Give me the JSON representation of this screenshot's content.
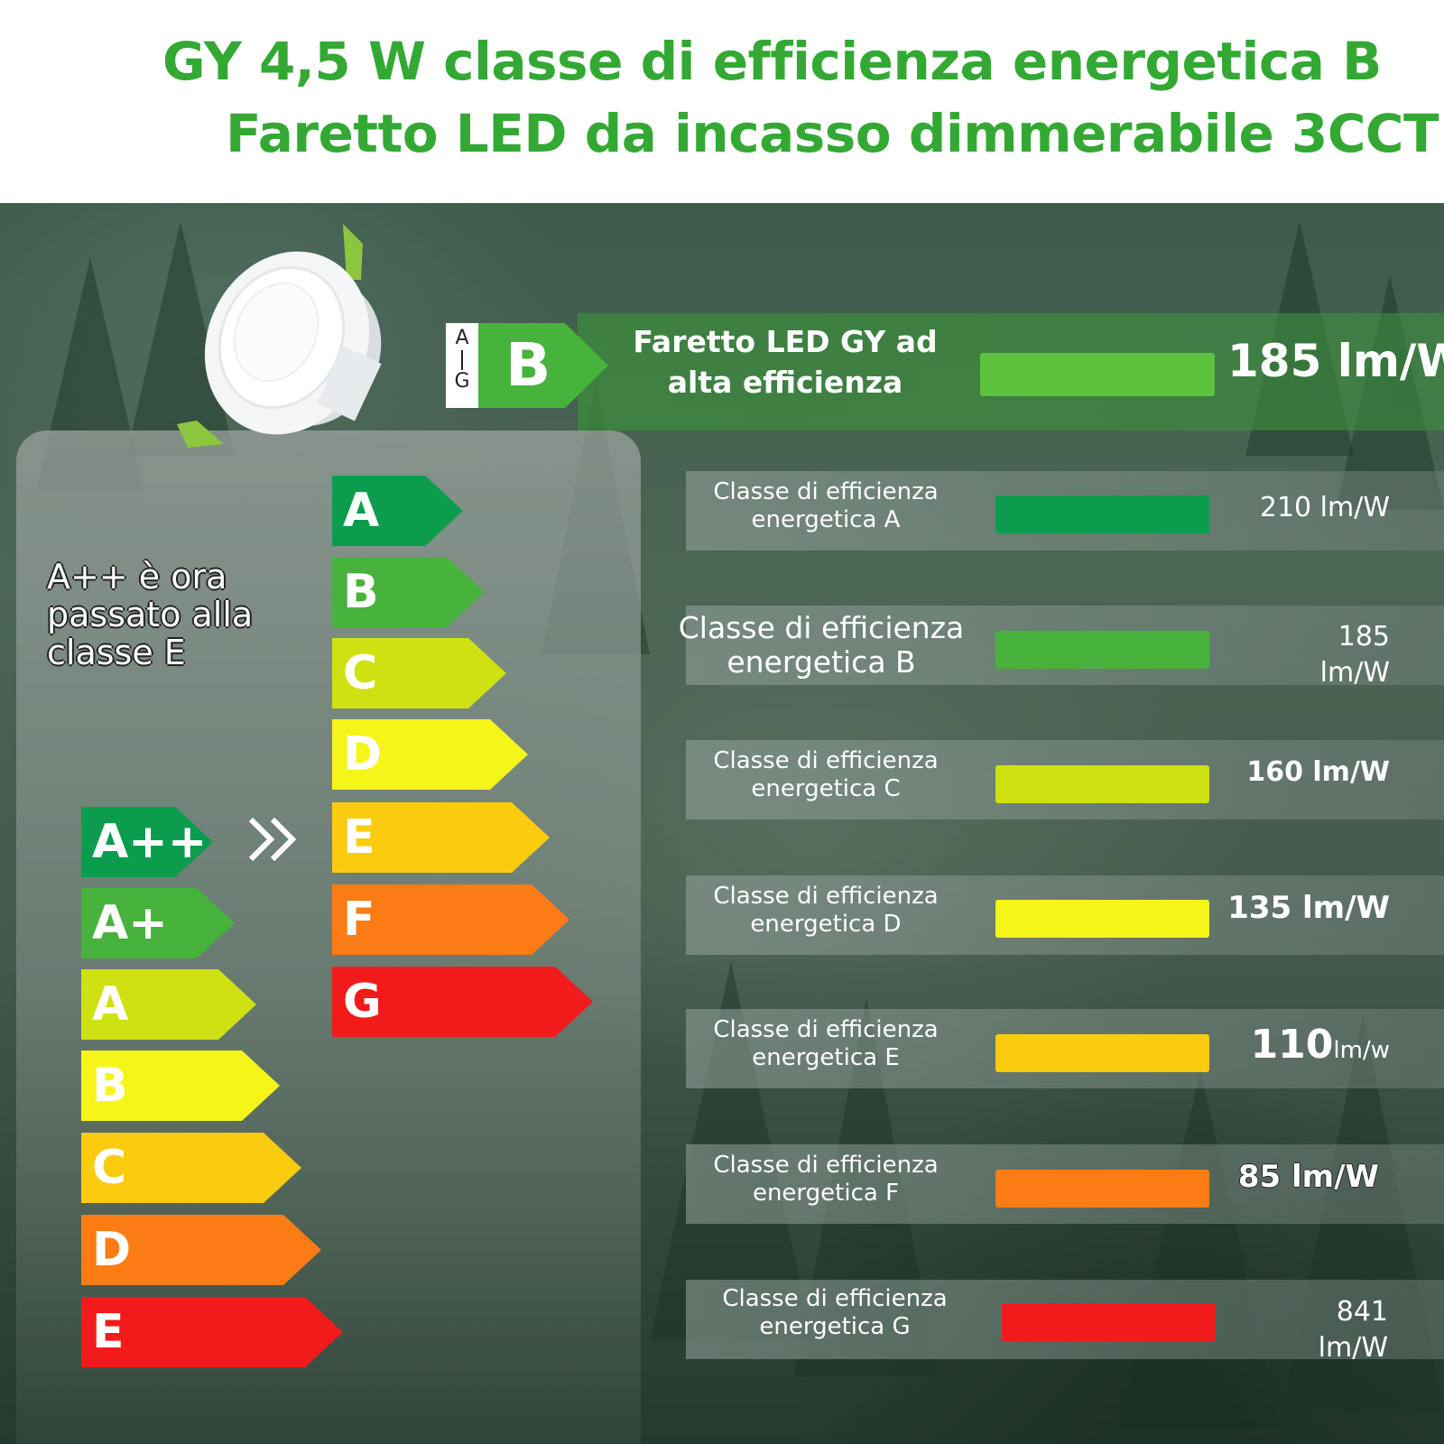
{
  "header": {
    "title_line1": "GY 4,5 W classe di efficienza energetica B",
    "title_line2": "Faretto LED da incasso dimmerabile 3CCT"
  },
  "colors": {
    "title_green": "#33a934",
    "class_A": "#0b9d4d",
    "class_B": "#47b33c",
    "class_C": "#cfe113",
    "class_D": "#f6f51a",
    "class_E": "#fbcb0f",
    "class_F": "#fb7c14",
    "class_G": "#f21b1b"
  },
  "note": "A++ è ora passato alla classe E",
  "old_scale": [
    "A++",
    "A+",
    "A",
    "B",
    "C",
    "D",
    "E"
  ],
  "new_scale": [
    "A",
    "B",
    "C",
    "D",
    "E",
    "F",
    "G"
  ],
  "chevron_icon": "double-chevron-right-icon",
  "product": {
    "scale_top": "A",
    "scale_bottom": "G",
    "class": "B",
    "name": "Faretto LED GY ad alta efficienza",
    "value": "185 lm/W",
    "efficacy_lm_per_w": 185
  },
  "rows": [
    {
      "label": "Classe di efficienza energetica A",
      "value": "210 lm/W",
      "efficacy_lm_per_w": 210
    },
    {
      "label": "Classe di efficienza energetica B",
      "value": "185 lm/W",
      "efficacy_lm_per_w": 185
    },
    {
      "label": "Classe di efficienza energetica C",
      "value": "160 lm/W",
      "efficacy_lm_per_w": 160
    },
    {
      "label": "Classe di efficienza energetica D",
      "value": "135 lm/W",
      "efficacy_lm_per_w": 135
    },
    {
      "label": "Classe di efficienza energetica E",
      "value_num": "110",
      "value_unit": "lm/w",
      "efficacy_lm_per_w": 110
    },
    {
      "label": "Classe di efficienza energetica F",
      "value": "85 lm/W",
      "efficacy_lm_per_w": 85
    },
    {
      "label": "Classe di efficienza energetica G",
      "value": "841 lm/W",
      "efficacy_lm_per_w": 841
    }
  ],
  "lamp_icon": "recessed-led-downlight-icon"
}
